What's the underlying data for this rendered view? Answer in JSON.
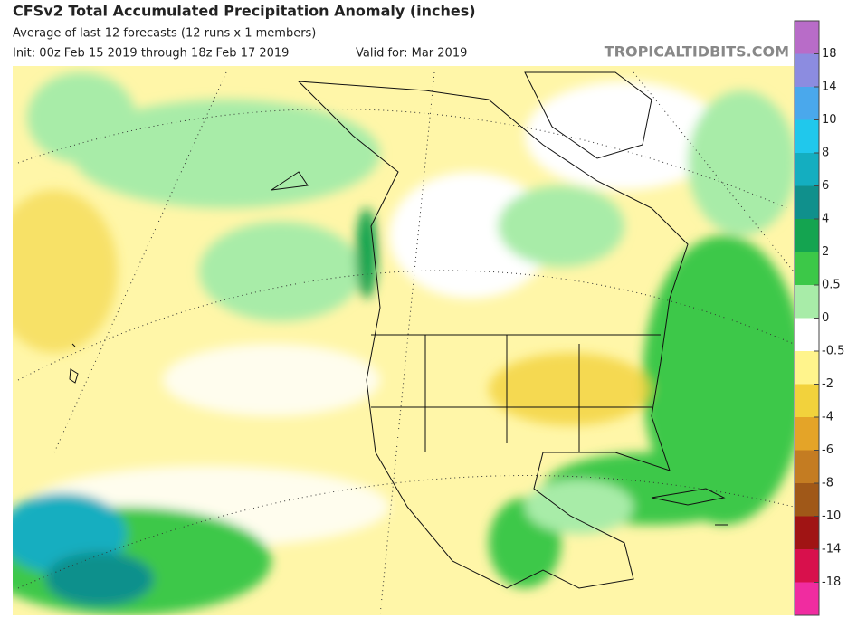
{
  "header": {
    "title": "CFSv2 Total Accumulated Precipitation Anomaly (inches)",
    "subtitle": "Average of last 12 forecasts (12 runs x 1 members)",
    "init": "Init: 00z Feb 15 2019 through 18z Feb 17 2019",
    "valid": "Valid for: Mar 2019",
    "credit": "TROPICALTIDBITS.COM"
  },
  "colorbar": {
    "ticks": [
      18,
      14,
      10,
      8,
      6,
      4,
      2,
      0.5,
      0,
      -0.5,
      -2,
      -4,
      -6,
      -8,
      -10,
      -14,
      -18
    ],
    "colors": [
      "#b86cc8",
      "#8c8ce0",
      "#4aa8ec",
      "#20c8ec",
      "#14aec0",
      "#10908c",
      "#14a450",
      "#3cc848",
      "#a8eca8",
      "#ffffff",
      "#fff48c",
      "#f2d23c",
      "#e4a428",
      "#c47c22",
      "#a05818",
      "#a01414",
      "#d8104c",
      "#f02ca0"
    ]
  }
}
